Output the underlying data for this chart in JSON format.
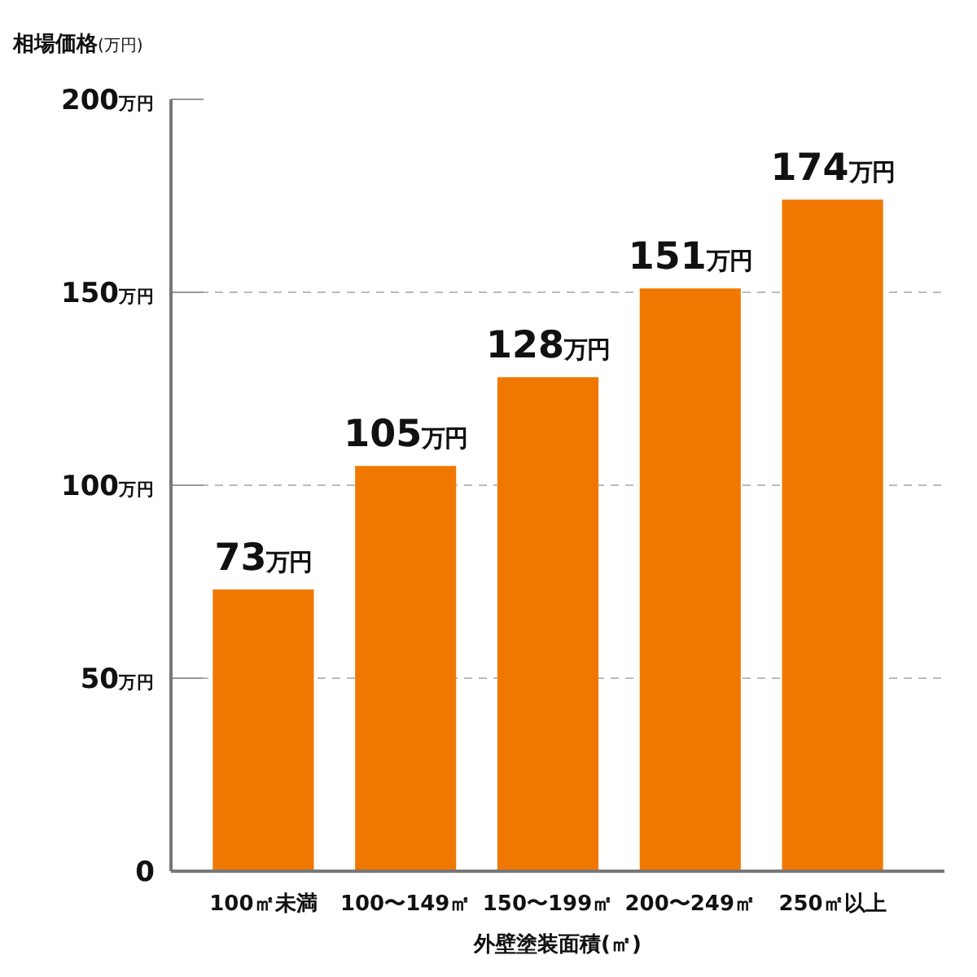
{
  "chart_data": {
    "type": "bar",
    "ylabel": "相場価格(万円)",
    "xlabel": "外壁塗装面積(㎡)",
    "categories": [
      "100㎡未満",
      "100〜149㎡",
      "150〜199㎡",
      "200〜249㎡",
      "250㎡以上"
    ],
    "values": [
      73,
      105,
      128,
      151,
      174
    ],
    "value_labels": [
      "73万円",
      "105万円",
      "128万円",
      "151万円",
      "174万円"
    ],
    "color": "#f07800",
    "ylim": [
      0,
      200
    ],
    "yticks": [
      0,
      {
        "value": 50,
        "label": "50万円"
      },
      {
        "value": 100,
        "label": "100万円"
      },
      {
        "value": 150,
        "label": "150万円"
      },
      {
        "value": 200,
        "label": "200万円"
      }
    ],
    "grid": "y"
  }
}
